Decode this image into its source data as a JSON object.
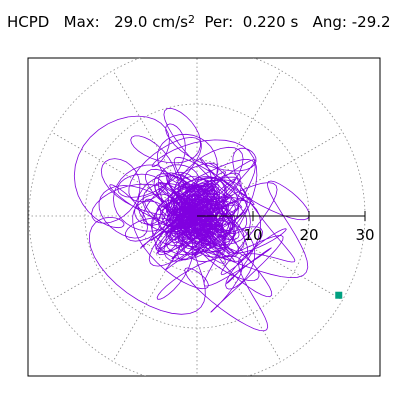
{
  "header": {
    "station": "HCPD",
    "max_label": "Max:",
    "max_value": "29.0",
    "max_unit": "cm/s",
    "max_exponent": "2",
    "per_label": "Per:",
    "per_value": "0.220 s",
    "ang_label": "Ang:",
    "ang_value": "-29.2"
  },
  "chart_data": {
    "type": "polar-hodogram",
    "radial_ticks": [
      "10",
      "20",
      "30"
    ],
    "radial_max": 30,
    "radial_rings": [
      10,
      20,
      30
    ],
    "angular_gridlines_deg": [
      0,
      30,
      60,
      90,
      120,
      150,
      180,
      210,
      240,
      270,
      300,
      330
    ],
    "axis_angle_deg": 0,
    "grid": true,
    "series": [
      {
        "color": "#8000e0",
        "marker_color": "#00a080",
        "max_amplitude": 29.0,
        "max_point": {
          "r": 29.0,
          "angle_deg": -29.2
        }
      }
    ]
  }
}
